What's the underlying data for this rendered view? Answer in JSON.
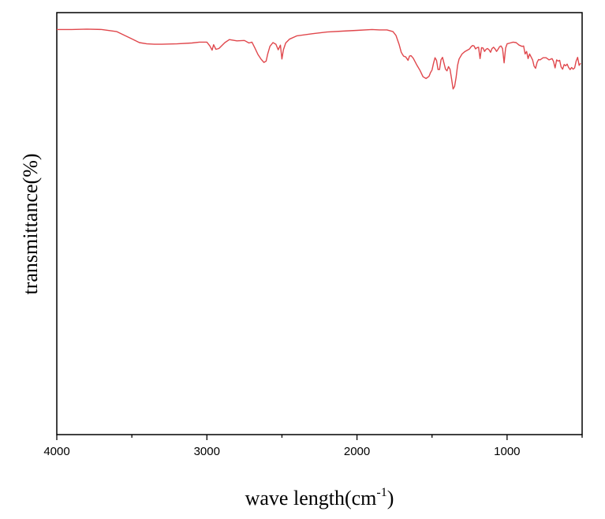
{
  "chart_data": {
    "type": "line",
    "xlabel_main": "wave length(cm",
    "xlabel_sup": "-1",
    "xlabel_end": ")",
    "ylabel": "transmittance(%)",
    "xlim": [
      4000,
      500
    ],
    "x_reversed": true,
    "ylim": [
      0,
      100
    ],
    "x_ticks": [
      4000,
      3000,
      2000,
      1000
    ],
    "x_tick_labels": [
      "4000",
      "3000",
      "2000",
      "1000"
    ],
    "grid": false,
    "legend": "none",
    "colors": {
      "line": "#e0474c",
      "axis": "#000000"
    },
    "series": [
      {
        "x": [
          4000,
          3900,
          3800,
          3700,
          3600,
          3500,
          3450,
          3400,
          3350,
          3300,
          3200,
          3100,
          3050,
          3000,
          2980,
          2965,
          2955,
          2940,
          2920,
          2900,
          2880,
          2850,
          2800,
          2750,
          2720,
          2700,
          2680,
          2660,
          2640,
          2620,
          2605,
          2595,
          2580,
          2560,
          2540,
          2525,
          2510,
          2500,
          2490,
          2475,
          2450,
          2400,
          2300,
          2200,
          2100,
          2000,
          1900,
          1850,
          1800,
          1760,
          1740,
          1720,
          1705,
          1690,
          1675,
          1660,
          1650,
          1640,
          1625,
          1600,
          1580,
          1560,
          1540,
          1520,
          1510,
          1500,
          1490,
          1480,
          1470,
          1460,
          1450,
          1440,
          1430,
          1420,
          1410,
          1400,
          1390,
          1380,
          1370,
          1360,
          1350,
          1340,
          1330,
          1320,
          1300,
          1280,
          1260,
          1250,
          1240,
          1230,
          1220,
          1210,
          1200,
          1190,
          1180,
          1170,
          1160,
          1150,
          1140,
          1130,
          1120,
          1110,
          1100,
          1090,
          1080,
          1070,
          1060,
          1050,
          1040,
          1030,
          1020,
          1010,
          1000,
          980,
          960,
          940,
          920,
          900,
          890,
          880,
          870,
          860,
          850,
          840,
          830,
          820,
          810,
          800,
          790,
          780,
          760,
          740,
          720,
          700,
          690,
          680,
          670,
          660,
          650,
          640,
          630,
          620,
          610,
          600,
          590,
          580,
          570,
          560,
          550,
          540,
          530,
          520,
          510
        ],
        "y": [
          96.0,
          96.0,
          96.1,
          96.0,
          95.5,
          93.8,
          92.9,
          92.6,
          92.5,
          92.5,
          92.6,
          92.8,
          93.0,
          93.0,
          92.1,
          91.1,
          92.4,
          91.3,
          91.5,
          92.2,
          92.9,
          93.6,
          93.3,
          93.4,
          92.8,
          93.0,
          91.6,
          90.1,
          89.0,
          88.2,
          88.5,
          90.2,
          92.0,
          92.9,
          92.5,
          91.2,
          92.3,
          89.0,
          91.2,
          92.8,
          93.7,
          94.5,
          95.0,
          95.4,
          95.6,
          95.8,
          96.0,
          95.9,
          95.9,
          95.5,
          94.6,
          92.5,
          90.6,
          89.7,
          89.5,
          88.7,
          89.7,
          89.8,
          89.2,
          87.5,
          86.3,
          84.8,
          84.4,
          84.9,
          85.8,
          86.4,
          88.0,
          89.3,
          88.7,
          86.5,
          86.5,
          88.8,
          89.4,
          88.0,
          86.6,
          86.2,
          87.2,
          86.6,
          84.3,
          81.9,
          82.5,
          84.6,
          87.5,
          89.0,
          90.2,
          90.8,
          91.2,
          91.4,
          91.9,
          92.2,
          92.1,
          91.4,
          91.7,
          91.8,
          89.1,
          91.7,
          91.6,
          90.8,
          91.3,
          91.5,
          91.2,
          90.6,
          91.5,
          91.8,
          91.4,
          90.8,
          91.3,
          91.9,
          92.1,
          91.5,
          88.1,
          91.6,
          92.6,
          92.8,
          93.0,
          92.9,
          92.3,
          92.0,
          92.1,
          90.2,
          90.8,
          89.1,
          90.2,
          89.5,
          88.8,
          87.3,
          86.8,
          88.2,
          88.9,
          88.8,
          89.3,
          89.3,
          88.8,
          89.1,
          88.4,
          86.9,
          88.8,
          88.5,
          88.7,
          87.1,
          86.6,
          87.7,
          87.4,
          87.8,
          87.0,
          86.5,
          87.0,
          86.6,
          86.9,
          88.5,
          89.4,
          87.5,
          88.0
        ]
      }
    ]
  }
}
